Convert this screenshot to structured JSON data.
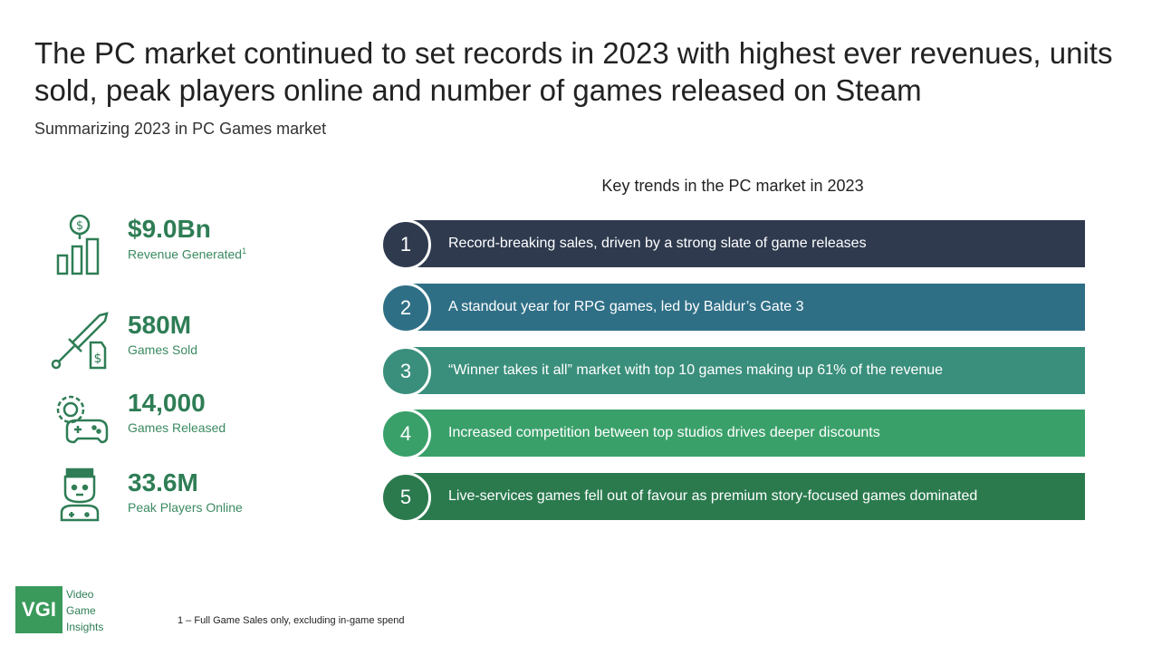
{
  "header": {
    "title": "The PC market continued to set records in 2023 with highest ever revenues, units sold, peak players online and number of games released on Steam",
    "subtitle": "Summarizing 2023 in PC Games market"
  },
  "stats": [
    {
      "value": "$9.0Bn",
      "label": "Revenue Generated",
      "footnote_marker": "1",
      "icon": "revenue-chart-icon"
    },
    {
      "value": "580M",
      "label": "Games Sold",
      "icon": "sword-price-tag-icon"
    },
    {
      "value": "14,000",
      "label": "Games Released",
      "icon": "gear-controller-icon"
    },
    {
      "value": "33.6M",
      "label": "Peak Players Online",
      "icon": "player-icon"
    }
  ],
  "trends": {
    "heading": "Key trends in the PC market in 2023",
    "items": [
      {
        "number": "1",
        "text": "Record-breaking sales, driven by a strong slate of game releases",
        "color": "#2f3a4f"
      },
      {
        "number": "2",
        "text": "A standout year for RPG games, led by Baldur’s Gate 3",
        "color": "#2f6f86"
      },
      {
        "number": "3",
        "text": "“Winner takes it all” market with top 10 games making up 61% of the revenue",
        "color": "#3a8f7c"
      },
      {
        "number": "4",
        "text": "Increased competition between top studios drives deeper discounts",
        "color": "#3aa06a"
      },
      {
        "number": "5",
        "text": "Live-services games fell out of favour as premium story-focused games dominated",
        "color": "#2a7a4e"
      }
    ]
  },
  "logo": {
    "abbr": "VGI",
    "line1": "Video",
    "line2": "Game",
    "line3": "Insights"
  },
  "footnote": "1 – Full Game Sales only, excluding in-game spend",
  "colors": {
    "accent": "#2e7d55"
  }
}
